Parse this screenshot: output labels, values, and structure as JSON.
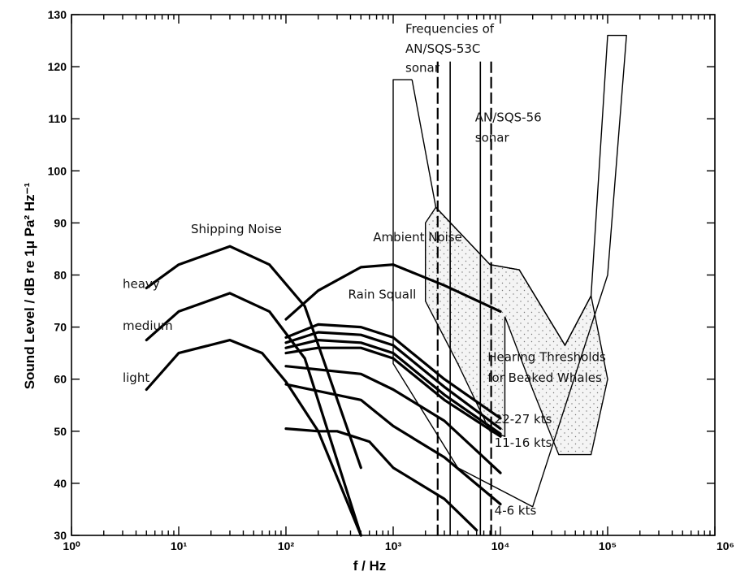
{
  "chart_data": {
    "type": "line",
    "xlabel": "f / Hz",
    "ylabel": "Sound Level / dB re 1μ Pa² Hz⁻¹",
    "xscale": "log",
    "xlim": [
      1,
      1000000
    ],
    "ylim": [
      30,
      130
    ],
    "x_tick_labels": [
      "10⁰",
      "10¹",
      "10²",
      "10³",
      "10⁴",
      "10⁵",
      "10⁶"
    ],
    "y_tick_labels": [
      "30",
      "40",
      "50",
      "60",
      "70",
      "80",
      "90",
      "100",
      "110",
      "120",
      "130"
    ],
    "grid": false,
    "series": [
      {
        "name": "heavy",
        "style": "thick",
        "points": [
          [
            5,
            77.5
          ],
          [
            10,
            82
          ],
          [
            30,
            85.5
          ],
          [
            70,
            82
          ],
          [
            150,
            74
          ],
          [
            500,
            43
          ]
        ]
      },
      {
        "name": "medium",
        "style": "thick",
        "points": [
          [
            5,
            67.5
          ],
          [
            10,
            73
          ],
          [
            30,
            76.5
          ],
          [
            70,
            73
          ],
          [
            150,
            64
          ],
          [
            500,
            30
          ]
        ]
      },
      {
        "name": "light",
        "style": "thick",
        "points": [
          [
            5,
            58
          ],
          [
            10,
            65
          ],
          [
            30,
            67.5
          ],
          [
            60,
            65
          ],
          [
            100,
            59.5
          ],
          [
            200,
            50
          ],
          [
            500,
            30
          ]
        ]
      },
      {
        "name": "",
        "style": "thick",
        "points": [
          [
            100,
            71.5
          ],
          [
            200,
            77
          ],
          [
            500,
            81.5
          ],
          [
            1000,
            82
          ],
          [
            3000,
            78
          ],
          [
            10000,
            73
          ]
        ]
      },
      {
        "style": "thick",
        "points": [
          [
            100,
            68
          ],
          [
            200,
            70.5
          ],
          [
            500,
            70
          ],
          [
            1000,
            68
          ],
          [
            3000,
            60
          ],
          [
            10000,
            52.5
          ]
        ]
      },
      {
        "style": "thick",
        "points": [
          [
            100,
            67
          ],
          [
            200,
            69
          ],
          [
            500,
            68.5
          ],
          [
            1000,
            66.5
          ],
          [
            3000,
            58.5
          ],
          [
            10000,
            50.5
          ]
        ]
      },
      {
        "style": "thick",
        "points": [
          [
            100,
            66
          ],
          [
            200,
            67.5
          ],
          [
            500,
            67
          ],
          [
            1000,
            65
          ],
          [
            3000,
            57
          ],
          [
            10000,
            49.5
          ]
        ]
      },
      {
        "style": "thick",
        "points": [
          [
            100,
            65
          ],
          [
            200,
            66
          ],
          [
            500,
            66
          ],
          [
            1000,
            64
          ],
          [
            3000,
            56
          ],
          [
            10000,
            49
          ]
        ]
      },
      {
        "style": "thick",
        "points": [
          [
            100,
            62.5
          ],
          [
            500,
            61
          ],
          [
            1000,
            58
          ],
          [
            3000,
            52
          ],
          [
            10000,
            42
          ]
        ]
      },
      {
        "style": "thick",
        "points": [
          [
            100,
            59
          ],
          [
            500,
            56
          ],
          [
            1000,
            51
          ],
          [
            3000,
            45
          ],
          [
            10000,
            36
          ]
        ]
      },
      {
        "style": "thick",
        "points": [
          [
            100,
            50.5
          ],
          [
            200,
            50
          ],
          [
            300,
            50
          ],
          [
            600,
            48
          ],
          [
            1000,
            43
          ],
          [
            3000,
            37
          ],
          [
            6000,
            31
          ]
        ]
      },
      {
        "name": "Hearing Thresholds for Beaked Whales",
        "style": "thin",
        "points": [
          [
            1500,
            117.5
          ],
          [
            1000,
            117.5
          ],
          [
            1000,
            63
          ],
          [
            4000,
            43
          ],
          [
            20000,
            35.5
          ],
          [
            100000,
            80
          ],
          [
            150000,
            126
          ],
          [
            100000,
            126
          ],
          [
            70000,
            76
          ],
          [
            40000,
            66.5
          ],
          [
            15000,
            81
          ],
          [
            8000,
            82
          ],
          [
            2500,
            93
          ],
          [
            1500,
            117.5
          ]
        ]
      },
      {
        "name": "",
        "style": "thin-closed",
        "points": [
          [
            2000,
            75
          ],
          [
            4000,
            63
          ],
          [
            8000,
            50
          ],
          [
            11000,
            49
          ],
          [
            11000,
            72
          ],
          [
            20000,
            58
          ],
          [
            35000,
            45.5
          ],
          [
            70000,
            45.5
          ],
          [
            100000,
            60
          ],
          [
            70000,
            76
          ],
          [
            40000,
            66.5
          ],
          [
            15000,
            81
          ],
          [
            8000,
            82
          ],
          [
            2500,
            93
          ],
          [
            2000,
            90
          ],
          [
            2000,
            75
          ]
        ]
      }
    ],
    "vertical_lines": [
      {
        "x": 2600,
        "style": "dashed"
      },
      {
        "x": 3400,
        "style": "solid"
      },
      {
        "x": 6500,
        "style": "solid"
      },
      {
        "x": 8200,
        "style": "dashed"
      }
    ],
    "annotations": [
      {
        "text": "Frequencies of",
        "x": 1300,
        "y": 126.5
      },
      {
        "text": "AN/SQS-53C",
        "x": 1300,
        "y": 122.7
      },
      {
        "text": "sonar",
        "x": 1300,
        "y": 119
      },
      {
        "text": "AN/SQS-56",
        "x": 5800,
        "y": 109.5
      },
      {
        "text": "sonar",
        "x": 5800,
        "y": 105.6
      },
      {
        "text": "Shipping Noise",
        "x": 13,
        "y": 88
      },
      {
        "text": "heavy",
        "x": 3,
        "y": 77.5
      },
      {
        "text": "medium",
        "x": 3,
        "y": 69.5
      },
      {
        "text": "light",
        "x": 3,
        "y": 59.5
      },
      {
        "text": "Ambient Noise",
        "x": 650,
        "y": 86.5
      },
      {
        "text": "Rain Squall",
        "x": 380,
        "y": 75.5
      },
      {
        "text": "Hearing Thresholds",
        "x": 7600,
        "y": 63.5
      },
      {
        "text": "for Beaked Whales",
        "x": 7600,
        "y": 59.5
      },
      {
        "text": "22-27 kts",
        "x": 8800,
        "y": 51.5
      },
      {
        "text": "11-16 kts",
        "x": 8800,
        "y": 47
      },
      {
        "text": "4-6 kts",
        "x": 8800,
        "y": 34
      }
    ]
  }
}
